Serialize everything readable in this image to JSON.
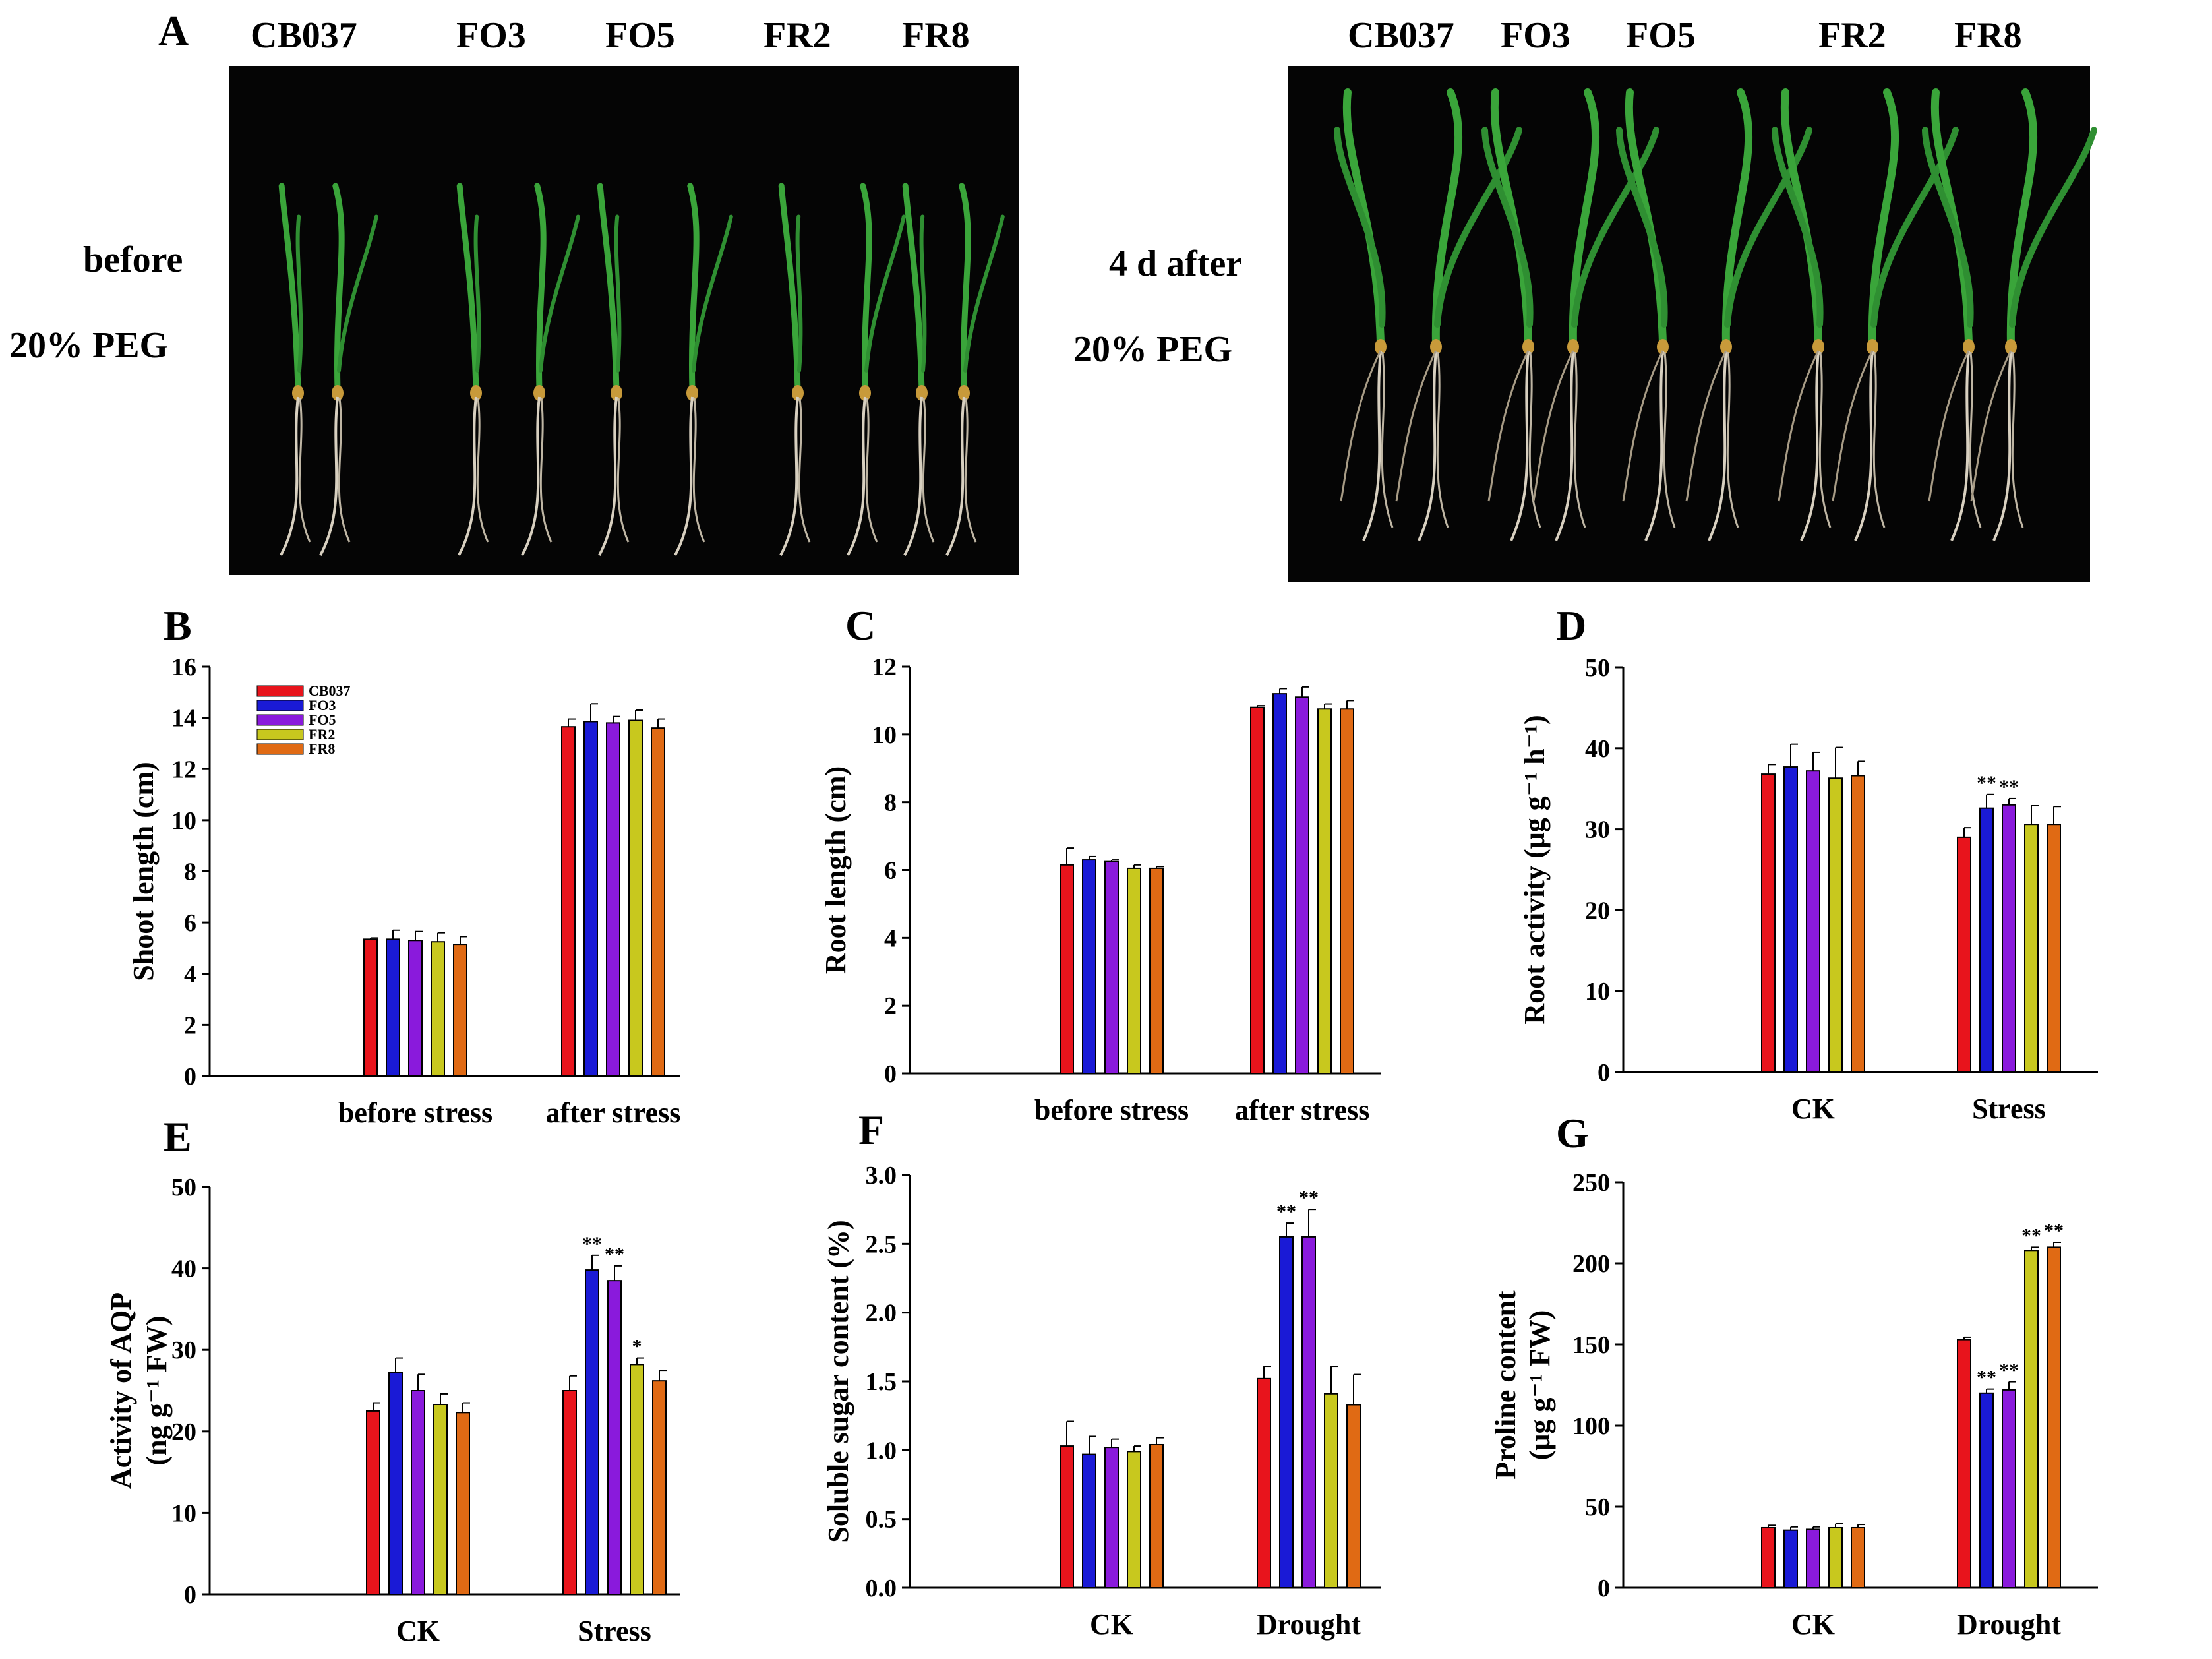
{
  "figure": {
    "panel_a": {
      "letter": "A",
      "left": {
        "labels": [
          "CB037",
          "FO3",
          "FO5",
          "FR2",
          "FR8"
        ],
        "side_line1": "before",
        "side_line2": "20% PEG"
      },
      "right": {
        "labels": [
          "CB037",
          "FO3",
          "FO5",
          "FR2",
          "FR8"
        ],
        "side_line1": "4 d after",
        "side_line2": "20% PEG"
      }
    },
    "colors": {
      "CB037": "#e8141c",
      "FO3": "#1a1ad6",
      "FO5": "#8a1adc",
      "FR2": "#c8c81e",
      "FR8": "#e06a14",
      "plant_bg": "#050505",
      "leaf": "#3aa53a",
      "root": "#d8d0c0"
    },
    "legend": [
      "CB037",
      "FO3",
      "FO5",
      "FR2",
      "FR8"
    ]
  },
  "chart_data": [
    {
      "id": "B",
      "letter": "B",
      "type": "bar",
      "title": "",
      "xlabel": "",
      "ylabel": "Shoot length (cm)",
      "ylim": [
        0,
        16
      ],
      "yticks": [
        "0",
        "2",
        "4",
        "6",
        "8",
        "10",
        "12",
        "14",
        "16"
      ],
      "categories": [
        "before stress",
        "after stress"
      ],
      "series": [
        {
          "name": "CB037",
          "values": [
            5.35,
            13.65
          ],
          "errors": [
            0.05,
            0.3
          ],
          "sig": [
            "",
            ""
          ]
        },
        {
          "name": "FO3",
          "values": [
            5.35,
            13.85
          ],
          "errors": [
            0.35,
            0.7
          ],
          "sig": [
            "",
            ""
          ]
        },
        {
          "name": "FO5",
          "values": [
            5.3,
            13.8
          ],
          "errors": [
            0.35,
            0.25
          ],
          "sig": [
            "",
            ""
          ]
        },
        {
          "name": "FR2",
          "values": [
            5.25,
            13.9
          ],
          "errors": [
            0.35,
            0.4
          ],
          "sig": [
            "",
            ""
          ]
        },
        {
          "name": "FR8",
          "values": [
            5.15,
            13.6
          ],
          "errors": [
            0.3,
            0.35
          ],
          "sig": [
            "",
            ""
          ]
        }
      ]
    },
    {
      "id": "C",
      "letter": "C",
      "type": "bar",
      "title": "",
      "xlabel": "",
      "ylabel": "Root length (cm)",
      "ylim": [
        0,
        12
      ],
      "yticks": [
        "0",
        "2",
        "4",
        "6",
        "8",
        "10",
        "12"
      ],
      "categories": [
        "before stress",
        "after stress"
      ],
      "series": [
        {
          "name": "CB037",
          "values": [
            6.15,
            10.8
          ],
          "errors": [
            0.5,
            0.05
          ],
          "sig": [
            "",
            ""
          ]
        },
        {
          "name": "FO3",
          "values": [
            6.3,
            11.2
          ],
          "errors": [
            0.1,
            0.15
          ],
          "sig": [
            "",
            ""
          ]
        },
        {
          "name": "FO5",
          "values": [
            6.25,
            11.1
          ],
          "errors": [
            0.05,
            0.3
          ],
          "sig": [
            "",
            ""
          ]
        },
        {
          "name": "FR2",
          "values": [
            6.05,
            10.75
          ],
          "errors": [
            0.1,
            0.15
          ],
          "sig": [
            "",
            ""
          ]
        },
        {
          "name": "FR8",
          "values": [
            6.05,
            10.75
          ],
          "errors": [
            0.05,
            0.25
          ],
          "sig": [
            "",
            ""
          ]
        }
      ]
    },
    {
      "id": "D",
      "letter": "D",
      "type": "bar",
      "title": "",
      "xlabel": "",
      "ylabel": "Root activity (μg g⁻¹ h⁻¹)",
      "ylim": [
        0,
        50
      ],
      "yticks": [
        "0",
        "10",
        "20",
        "30",
        "40",
        "50"
      ],
      "categories": [
        "CK",
        "Stress"
      ],
      "series": [
        {
          "name": "CB037",
          "values": [
            36.8,
            29.0
          ],
          "errors": [
            1.2,
            1.2
          ],
          "sig": [
            "",
            ""
          ]
        },
        {
          "name": "FO3",
          "values": [
            37.7,
            32.6
          ],
          "errors": [
            2.8,
            1.7
          ],
          "sig": [
            "",
            "**"
          ]
        },
        {
          "name": "FO5",
          "values": [
            37.2,
            33.0
          ],
          "errors": [
            2.3,
            0.8
          ],
          "sig": [
            "",
            "**"
          ]
        },
        {
          "name": "FR2",
          "values": [
            36.3,
            30.6
          ],
          "errors": [
            3.8,
            2.3
          ],
          "sig": [
            "",
            ""
          ]
        },
        {
          "name": "FR8",
          "values": [
            36.6,
            30.6
          ],
          "errors": [
            1.8,
            2.2
          ],
          "sig": [
            "",
            ""
          ]
        }
      ]
    },
    {
      "id": "E",
      "letter": "E",
      "type": "bar",
      "title": "",
      "xlabel": "",
      "ylabel": "Activity of AQP (ng g⁻¹ FW)",
      "ylim": [
        0,
        50
      ],
      "yticks": [
        "0",
        "10",
        "20",
        "30",
        "40",
        "50"
      ],
      "categories": [
        "CK",
        "Stress"
      ],
      "series": [
        {
          "name": "CB037",
          "values": [
            22.5,
            25.0
          ],
          "errors": [
            1.0,
            1.8
          ],
          "sig": [
            "",
            ""
          ]
        },
        {
          "name": "FO3",
          "values": [
            27.2,
            39.8
          ],
          "errors": [
            1.8,
            1.8
          ],
          "sig": [
            "",
            "**"
          ]
        },
        {
          "name": "FO5",
          "values": [
            25.0,
            38.5
          ],
          "errors": [
            2.0,
            1.8
          ],
          "sig": [
            "",
            "**"
          ]
        },
        {
          "name": "FR2",
          "values": [
            23.3,
            28.2
          ],
          "errors": [
            1.3,
            0.8
          ],
          "sig": [
            "",
            "*"
          ]
        },
        {
          "name": "FR8",
          "values": [
            22.3,
            26.2
          ],
          "errors": [
            1.2,
            1.3
          ],
          "sig": [
            "",
            ""
          ]
        }
      ]
    },
    {
      "id": "F",
      "letter": "F",
      "type": "bar",
      "title": "",
      "xlabel": "",
      "ylabel": "Soluble sugar content (%)",
      "ylim": [
        0,
        3.0
      ],
      "yticks": [
        "0.0",
        "0.5",
        "1.0",
        "1.5",
        "2.0",
        "2.5",
        "3.0"
      ],
      "categories": [
        "CK",
        "Drought"
      ],
      "series": [
        {
          "name": "CB037",
          "values": [
            1.03,
            1.52
          ],
          "errors": [
            0.18,
            0.09
          ],
          "sig": [
            "",
            ""
          ]
        },
        {
          "name": "FO3",
          "values": [
            0.97,
            2.55
          ],
          "errors": [
            0.13,
            0.1
          ],
          "sig": [
            "",
            "**"
          ]
        },
        {
          "name": "FO5",
          "values": [
            1.02,
            2.55
          ],
          "errors": [
            0.06,
            0.2
          ],
          "sig": [
            "",
            "**"
          ]
        },
        {
          "name": "FR2",
          "values": [
            0.99,
            1.41
          ],
          "errors": [
            0.04,
            0.2
          ],
          "sig": [
            "",
            ""
          ]
        },
        {
          "name": "FR8",
          "values": [
            1.04,
            1.33
          ],
          "errors": [
            0.05,
            0.22
          ],
          "sig": [
            "",
            ""
          ]
        }
      ]
    },
    {
      "id": "G",
      "letter": "G",
      "type": "bar",
      "title": "",
      "xlabel": "",
      "ylabel": "Proline content (μg g⁻¹ FW)",
      "ylim": [
        0,
        250
      ],
      "yticks": [
        "0",
        "50",
        "100",
        "150",
        "200",
        "250"
      ],
      "categories": [
        "CK",
        "Drought"
      ],
      "series": [
        {
          "name": "CB037",
          "values": [
            37.0,
            153.0
          ],
          "errors": [
            1.5,
            1.5
          ],
          "sig": [
            "",
            ""
          ]
        },
        {
          "name": "FO3",
          "values": [
            35.5,
            120.0
          ],
          "errors": [
            2.0,
            2.5
          ],
          "sig": [
            "",
            "**"
          ]
        },
        {
          "name": "FO5",
          "values": [
            36.0,
            122.0
          ],
          "errors": [
            1.5,
            5.0
          ],
          "sig": [
            "",
            "**"
          ]
        },
        {
          "name": "FR2",
          "values": [
            37.0,
            208.0
          ],
          "errors": [
            2.5,
            2.0
          ],
          "sig": [
            "",
            "**"
          ]
        },
        {
          "name": "FR8",
          "values": [
            37.0,
            210.0
          ],
          "errors": [
            2.0,
            3.0
          ],
          "sig": [
            "",
            "**"
          ]
        }
      ]
    }
  ]
}
